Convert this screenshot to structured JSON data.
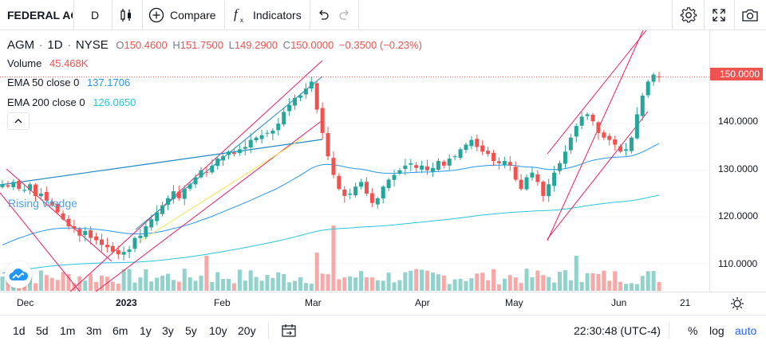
{
  "toolbar": {
    "symbol": "FEDERAL AG",
    "interval": "D",
    "compare_label": "Compare",
    "indicators_label": "Indicators"
  },
  "legend": {
    "ticker": "AGM",
    "interval": "1D",
    "exchange": "NYSE",
    "open_key": "O",
    "open": "150.4600",
    "high_key": "H",
    "high": "151.7500",
    "low_key": "L",
    "low": "149.2900",
    "close_key": "C",
    "close": "150.0000",
    "change": "−0.3500 (−0.23%)",
    "volume_label": "Volume",
    "volume": "45.468K",
    "ema50_label": "EMA 50 close 0",
    "ema50_value": "137.1706",
    "ema200_label": "EMA 200 close 0",
    "ema200_value": "126.0650"
  },
  "drawing_label": "Rising Wedge",
  "price_axis": {
    "current_price": "150.0000",
    "labels": [
      "140.0000",
      "130.0000",
      "120.0000",
      "110.0000"
    ]
  },
  "time_axis": {
    "labels": [
      "Dec",
      "2023",
      "Feb",
      "Mar",
      "Apr",
      "May",
      "Jun",
      "21"
    ]
  },
  "bottom_bar": {
    "ranges": [
      "1d",
      "5d",
      "1m",
      "3m",
      "6m",
      "1y",
      "3y",
      "5y",
      "10y",
      "20y"
    ],
    "clock": "22:30:48 (UTC-4)",
    "percent_label": "%",
    "log_label": "log",
    "auto_label": "auto"
  },
  "colors": {
    "up": "#26a69a",
    "down": "#ef5350",
    "ema50": "#2196f3",
    "ema200": "#26c6da",
    "channel": "#e91e63",
    "trendline": "#1e88c5",
    "fib_line": "#f2e64b",
    "accent": "#2962ff"
  },
  "chart_data": {
    "type": "candlestick",
    "x_range": [
      "2022-11-28",
      "2023-06-21"
    ],
    "y_range": [
      104,
      160
    ],
    "closes": [
      127.0,
      126.5,
      127.5,
      126.0,
      125.8,
      127.0,
      124.5,
      125.0,
      123.5,
      122.5,
      121.0,
      119.5,
      118.0,
      117.5,
      116.0,
      117.0,
      115.5,
      115.0,
      114.0,
      113.5,
      112.5,
      112.0,
      112.5,
      113.0,
      115.5,
      116.0,
      118.0,
      119.5,
      121.0,
      122.5,
      124.0,
      125.5,
      124.0,
      126.0,
      127.0,
      128.5,
      130.0,
      129.5,
      131.0,
      132.5,
      133.0,
      134.0,
      133.5,
      134.5,
      135.0,
      136.5,
      137.0,
      137.5,
      138.0,
      138.5,
      140.0,
      142.5,
      144.0,
      145.5,
      146.0,
      147.5,
      149.0,
      143.0,
      138.0,
      133.0,
      129.0,
      126.0,
      124.5,
      125.0,
      126.5,
      127.5,
      125.0,
      123.0,
      124.0,
      126.5,
      128.0,
      129.0,
      130.0,
      131.0,
      131.5,
      130.5,
      131.0,
      130.0,
      130.5,
      132.0,
      131.0,
      132.5,
      133.0,
      134.5,
      135.5,
      136.5,
      135.0,
      134.0,
      133.5,
      132.0,
      131.5,
      132.0,
      131.0,
      128.0,
      126.0,
      128.5,
      129.5,
      127.5,
      124.5,
      127.0,
      129.5,
      131.5,
      134.0,
      137.0,
      139.5,
      141.5,
      142.0,
      140.5,
      138.0,
      137.0,
      136.5,
      135.5,
      134.0,
      134.5,
      137.0,
      142.0,
      146.0,
      149.0,
      150.5,
      150.0
    ],
    "volume_unit": "K",
    "last_volume": 45.468,
    "ema50": {
      "start": 114.0,
      "end": 137.2
    },
    "ema200": {
      "start": 108.0,
      "end": 126.1
    }
  }
}
